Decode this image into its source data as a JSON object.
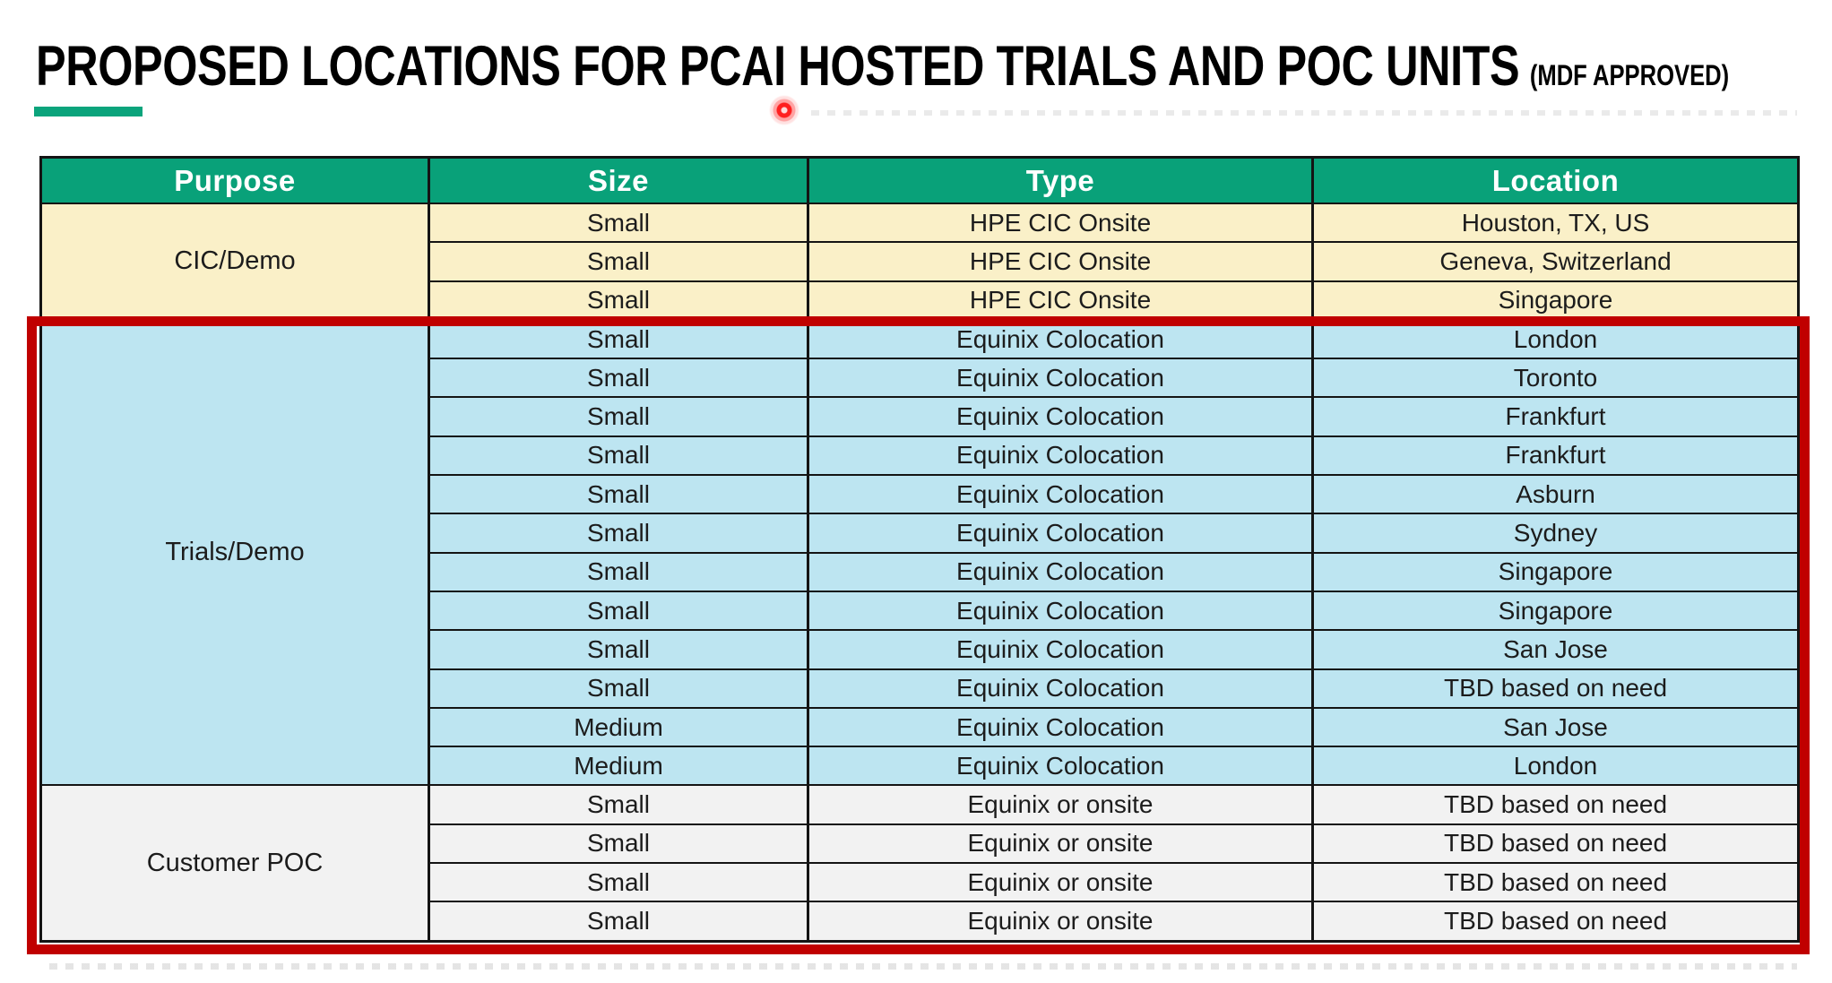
{
  "slide": {
    "title": "PROPOSED LOCATIONS FOR PCAI HOSTED TRIALS AND POC UNITS",
    "title_suffix": "(MDF APPROVED)",
    "accent_color": "#0BA47C"
  },
  "table": {
    "header_bg": "#09A179",
    "header_text_color": "#FFFFFF",
    "headers": [
      "Purpose",
      "Size",
      "Type",
      "Location"
    ],
    "sections": [
      {
        "purpose": "CIC/Demo",
        "bg": "#FAF0C8",
        "rows": [
          [
            "Small",
            "HPE CIC Onsite",
            "Houston, TX, US"
          ],
          [
            "Small",
            "HPE CIC Onsite",
            "Geneva, Switzerland"
          ],
          [
            "Small",
            "HPE CIC Onsite",
            "Singapore"
          ]
        ]
      },
      {
        "purpose": "Trials/Demo",
        "bg": "#BDE5F1",
        "rows": [
          [
            "Small",
            "Equinix Colocation",
            "London"
          ],
          [
            "Small",
            "Equinix Colocation",
            "Toronto"
          ],
          [
            "Small",
            "Equinix Colocation",
            "Frankfurt"
          ],
          [
            "Small",
            "Equinix Colocation",
            "Frankfurt"
          ],
          [
            "Small",
            "Equinix Colocation",
            "Asburn"
          ],
          [
            "Small",
            "Equinix Colocation",
            "Sydney"
          ],
          [
            "Small",
            "Equinix Colocation",
            "Singapore"
          ],
          [
            "Small",
            "Equinix Colocation",
            "Singapore"
          ],
          [
            "Small",
            "Equinix Colocation",
            "San Jose"
          ],
          [
            "Small",
            "Equinix Colocation",
            "TBD based on need"
          ],
          [
            "Medium",
            "Equinix Colocation",
            "San Jose"
          ],
          [
            "Medium",
            "Equinix Colocation",
            "London"
          ]
        ]
      },
      {
        "purpose": "Customer POC",
        "bg": "#F2F2F2",
        "rows": [
          [
            "Small",
            "Equinix or onsite",
            "TBD based on need"
          ],
          [
            "Small",
            "Equinix or onsite",
            "TBD based on need"
          ],
          [
            "Small",
            "Equinix or onsite",
            "TBD based on need"
          ],
          [
            "Small",
            "Equinix or onsite",
            "TBD based on need"
          ]
        ]
      }
    ]
  },
  "annotations": {
    "box_color": "#C00000",
    "laser_dot_color": "#FF1F1F"
  }
}
